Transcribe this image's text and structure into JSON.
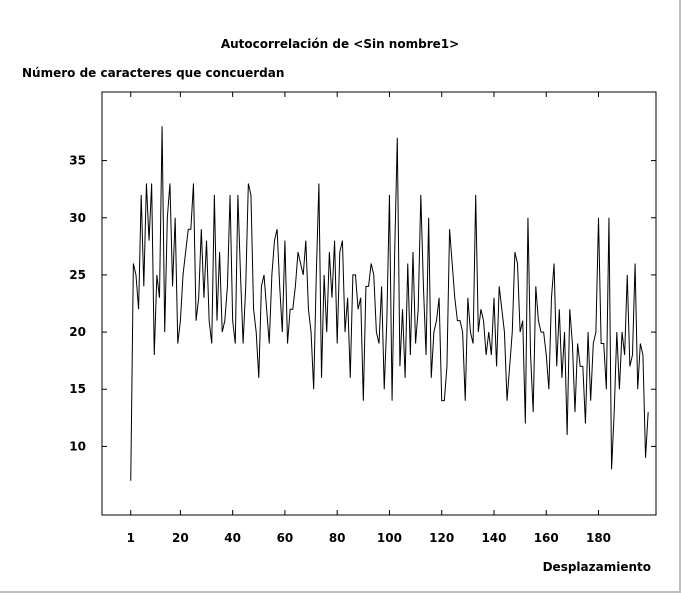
{
  "chart_data": {
    "type": "line",
    "title": "Autocorrelación de <Sin nombre1>",
    "ylabel": "Número de caracteres que concuerdan",
    "xlabel": "Desplazamiento",
    "xlim": [
      -10,
      202
    ],
    "ylim": [
      4,
      41
    ],
    "xticks": [
      "1",
      "20",
      "40",
      "60",
      "80",
      "100",
      "120",
      "140",
      "160",
      "180"
    ],
    "xtick_values": [
      1,
      20,
      40,
      60,
      80,
      100,
      120,
      140,
      160,
      180
    ],
    "yticks": [
      "10",
      "15",
      "20",
      "25",
      "30",
      "35"
    ],
    "ytick_values": [
      10,
      15,
      20,
      25,
      30,
      35
    ],
    "grid": false,
    "line_color": "#000000",
    "series": [
      {
        "x_start": 1,
        "values": [
          7,
          26,
          25,
          22,
          32,
          24,
          33,
          28,
          33,
          18,
          25,
          23,
          38,
          20,
          30,
          33,
          24,
          30,
          19,
          21,
          25,
          27,
          29,
          29,
          33,
          21,
          23,
          29,
          23,
          28,
          21,
          19,
          32,
          21,
          27,
          20,
          21,
          24,
          32,
          21,
          19,
          32,
          25,
          19,
          24,
          33,
          32,
          22,
          20,
          16,
          24,
          25,
          22,
          19,
          25,
          28,
          29,
          24,
          20,
          28,
          19,
          22,
          22,
          24,
          27,
          26,
          25,
          28,
          22,
          20,
          15,
          25,
          33,
          16,
          25,
          20,
          27,
          23,
          28,
          19,
          27,
          28,
          20,
          23,
          16,
          25,
          25,
          22,
          23,
          14,
          24,
          24,
          26,
          25,
          20,
          19,
          24,
          15,
          21,
          32,
          14,
          27,
          37,
          17,
          22,
          16,
          26,
          18,
          27,
          19,
          22,
          32,
          24,
          18,
          30,
          16,
          20,
          21,
          23,
          14,
          14,
          17,
          29,
          26,
          23,
          21,
          21,
          20,
          14,
          23,
          20,
          19,
          32,
          20,
          22,
          21,
          18,
          20,
          18,
          23,
          17,
          24,
          22,
          20,
          14,
          17,
          20,
          27,
          26,
          20,
          21,
          12,
          30,
          18,
          13,
          24,
          21,
          20,
          20,
          18,
          15,
          23,
          26,
          17,
          22,
          16,
          20,
          11,
          22,
          19,
          13,
          19,
          17,
          17,
          12,
          20,
          14,
          19,
          20,
          30,
          19,
          19,
          15,
          30,
          8,
          13,
          20,
          15,
          20,
          18,
          25,
          17,
          18,
          26,
          15,
          19,
          18,
          9,
          13
        ]
      }
    ]
  }
}
